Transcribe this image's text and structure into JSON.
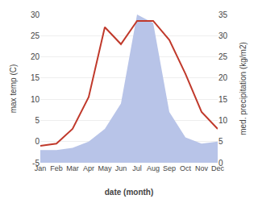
{
  "chart_data": {
    "type": "line",
    "xlabel": "date (month)",
    "ylabel": "max temp (C)",
    "y2label": "med. precipitation (kg/m2)",
    "categories": [
      "Jan",
      "Feb",
      "Mar",
      "Apr",
      "May",
      "Jun",
      "Jul",
      "Aug",
      "Sep",
      "Oct",
      "Nov",
      "Dec"
    ],
    "series": [
      {
        "type": "area",
        "axis": "y2",
        "color": "#b8c4e8",
        "values": [
          3.0,
          3.0,
          3.5,
          5.0,
          8.0,
          14.0,
          35.0,
          33.0,
          12.0,
          6.0,
          4.5,
          5.0
        ]
      },
      {
        "type": "line",
        "color": "#c0392b",
        "values": [
          -1.0,
          -0.5,
          3.0,
          10.5,
          27.0,
          23.0,
          28.5,
          28.5,
          24.0,
          16.0,
          7.0,
          3.0
        ]
      }
    ],
    "ylim": [
      -5,
      30
    ],
    "yticks": [
      -5,
      0,
      5,
      10,
      15,
      20,
      25,
      30
    ],
    "y2lim": [
      0,
      35
    ],
    "y2ticks": [
      0,
      5,
      10,
      15,
      20,
      25,
      30,
      35
    ],
    "grid": true
  }
}
